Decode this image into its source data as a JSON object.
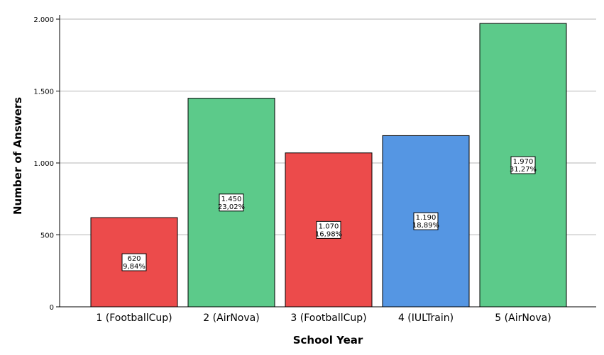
{
  "chart_data": {
    "type": "bar",
    "xlabel": "School Year",
    "ylabel": "Number of Answers",
    "ylim": [
      0,
      2000
    ],
    "yticks": [
      0,
      500,
      1000,
      1500,
      2000
    ],
    "ytick_labels": [
      "0",
      "500",
      "1.000",
      "1.500",
      "2.000"
    ],
    "grid": true,
    "categories": [
      "1 (FootballCup)",
      "2 (AirNova)",
      "3 (FootballCup)",
      "4 (IULTrain)",
      "5 (AirNova)"
    ],
    "values": [
      620,
      1450,
      1070,
      1190,
      1970
    ],
    "value_labels": [
      "620",
      "1.450",
      "1.070",
      "1.190",
      "1.970"
    ],
    "percent_labels": [
      "9,84%",
      "23,02%",
      "16,98%",
      "18,89%",
      "31,27%"
    ],
    "colors": [
      "#ec4b4b",
      "#5cca8a",
      "#ec4b4b",
      "#5596e3",
      "#5cca8a"
    ]
  }
}
